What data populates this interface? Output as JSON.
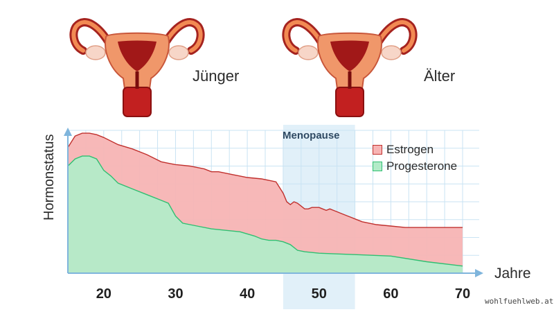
{
  "labels": {
    "young": "Jünger",
    "old": "Älter",
    "watermark": "wohlfuehlweb.at"
  },
  "icons": {
    "young": "uterus-young-illustration-icon",
    "old": "uterus-old-illustration-icon"
  },
  "chart_data": {
    "type": "area",
    "xlabel": "Jahre",
    "ylabel": "Hormonstatus",
    "xlim": [
      15,
      70
    ],
    "ylim": [
      0,
      100
    ],
    "xticks": [
      20,
      30,
      40,
      50,
      60,
      70
    ],
    "grid": true,
    "legend_position": "top-right",
    "annotation": {
      "label": "Menopause",
      "x_range": [
        45,
        55
      ]
    },
    "series": [
      {
        "name": "Estrogen",
        "color": "#f7b4b4",
        "line_color": "#c0302d",
        "x": [
          15,
          16,
          17,
          18,
          19,
          20,
          22,
          24,
          26,
          28,
          29,
          30,
          32,
          34,
          35,
          36,
          38,
          40,
          42,
          44,
          45,
          45.5,
          46,
          46.5,
          47,
          47.5,
          48,
          48.5,
          49,
          49.5,
          50,
          50.5,
          51,
          51.5,
          52,
          52.5,
          53,
          54,
          55,
          56,
          58,
          60,
          62,
          65,
          68,
          70
        ],
        "values": [
          88,
          96,
          98,
          98,
          97,
          95,
          90,
          87,
          83,
          78,
          77,
          76,
          75,
          73,
          71,
          71,
          69,
          67,
          66,
          64,
          56,
          50,
          48,
          50,
          49,
          47,
          45,
          45,
          46,
          46,
          46,
          45,
          44,
          45,
          44,
          43,
          42,
          40,
          38,
          36,
          34,
          33,
          32,
          32,
          32,
          32
        ]
      },
      {
        "name": "Progesterone",
        "color": "#b3ebc8",
        "line_color": "#2fbf71",
        "x": [
          15,
          16,
          17,
          18,
          19,
          20,
          21,
          22,
          24,
          26,
          28,
          29,
          30,
          31,
          33,
          35,
          37,
          39,
          41,
          42,
          43,
          44,
          45,
          46,
          47,
          48,
          50,
          55,
          60,
          65,
          70
        ],
        "values": [
          75,
          80,
          82,
          82,
          80,
          72,
          68,
          63,
          59,
          55,
          51,
          49,
          40,
          35,
          33,
          31,
          30,
          29,
          26,
          24,
          23,
          23,
          22,
          20,
          16,
          15,
          14,
          13,
          12,
          8,
          5
        ]
      }
    ]
  }
}
